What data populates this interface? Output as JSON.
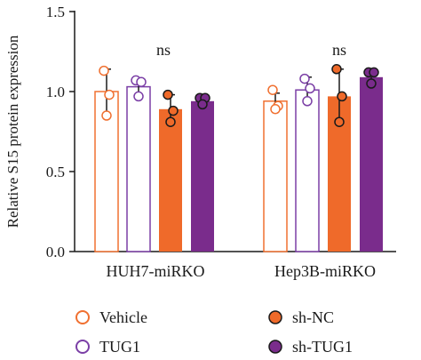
{
  "chart_data": {
    "type": "bar",
    "ylabel": "Relative S15 protein expression",
    "ylim": [
      0,
      1.5
    ],
    "yticks": [
      "0.0",
      "0.5",
      "1.0",
      "1.5"
    ],
    "categories": [
      "HUH7-miRKO",
      "Hep3B-miRKO"
    ],
    "annotations": [
      "ns",
      "ns"
    ],
    "legend_position": "bottom",
    "series": [
      {
        "name": "Vehicle",
        "style": "hollow",
        "color": "#f07030",
        "values": [
          1.0,
          0.94
        ],
        "errors": [
          0.14,
          0.05
        ],
        "points": [
          [
            1.13,
            0.98,
            0.85
          ],
          [
            1.01,
            0.91,
            0.89
          ]
        ]
      },
      {
        "name": "TUG1",
        "style": "hollow",
        "color": "#7b3fa6",
        "values": [
          1.03,
          1.01
        ],
        "errors": [
          0.05,
          0.08
        ],
        "points": [
          [
            1.07,
            1.06,
            0.97
          ],
          [
            1.08,
            1.02,
            0.94
          ]
        ]
      },
      {
        "name": "sh-NC",
        "style": "filled",
        "color": "#ef6a2a",
        "values": [
          0.89,
          0.97
        ],
        "errors": [
          0.09,
          0.17
        ],
        "points": [
          [
            0.98,
            0.88,
            0.81
          ],
          [
            1.14,
            0.97,
            0.81
          ]
        ]
      },
      {
        "name": "sh-TUG1",
        "style": "filled",
        "color": "#7a2c8c",
        "values": [
          0.94,
          1.09
        ],
        "errors": [
          0.02,
          0.04
        ],
        "points": [
          [
            0.96,
            0.96,
            0.92
          ],
          [
            1.12,
            1.12,
            1.05
          ]
        ]
      }
    ]
  }
}
